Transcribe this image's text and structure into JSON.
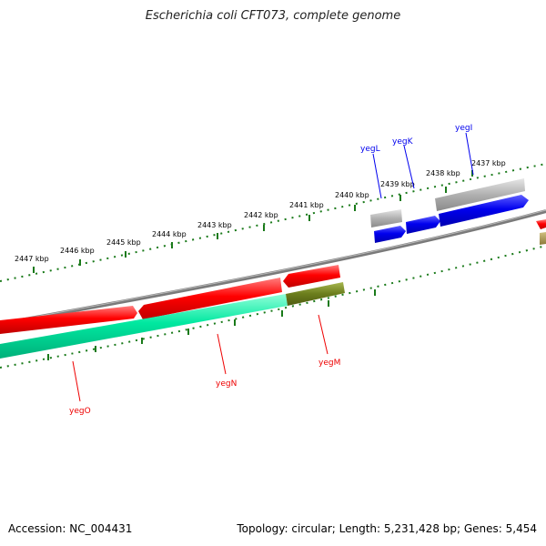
{
  "title": "Escherichia coli CFT073, complete genome",
  "footer": {
    "accession": "Accession: NC_004431",
    "summary": "Topology: circular; Length: 5,231,428 bp; Genes: 5,454"
  },
  "colors": {
    "forward_gene": "#0000ee",
    "reverse_gene": "#ee0000",
    "rna_gene": "#a0a0a0",
    "cds_teal": "#00e8a0",
    "cds_olive": "#6b7d1c",
    "backbone": "#808080",
    "tick": "#1a7a1a"
  },
  "ticks": [
    "2437 kbp",
    "2438 kbp",
    "2439 kbp",
    "2440 kbp",
    "2441 kbp",
    "2442 kbp",
    "2443 kbp",
    "2444 kbp",
    "2445 kbp",
    "2446 kbp",
    "2447 kbp"
  ],
  "genes": [
    {
      "name": "yegI",
      "strand": "forward"
    },
    {
      "name": "yegK",
      "strand": "forward"
    },
    {
      "name": "yegL",
      "strand": "forward"
    },
    {
      "name": "yegM",
      "strand": "reverse"
    },
    {
      "name": "yegN",
      "strand": "reverse"
    },
    {
      "name": "yegO",
      "strand": "reverse"
    }
  ]
}
